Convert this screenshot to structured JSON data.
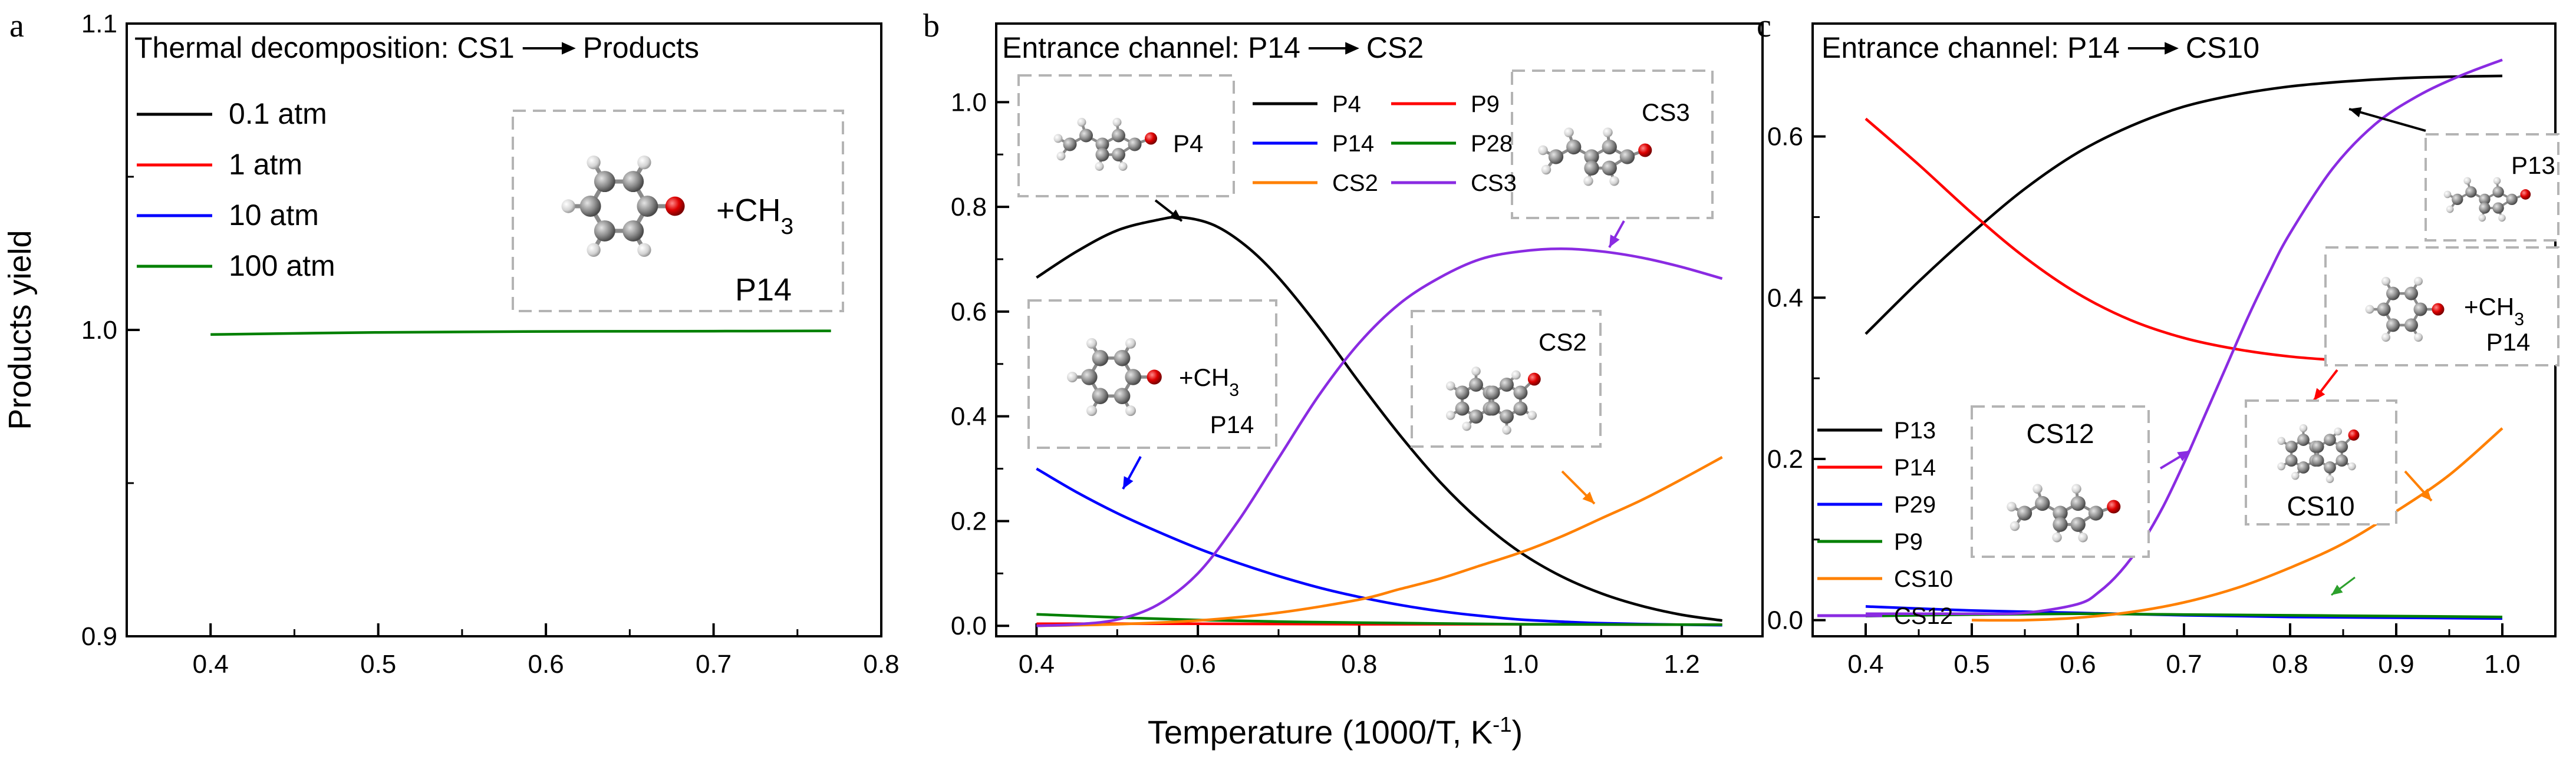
{
  "figure": {
    "xlabel_main": "Temperature (1000/T, K",
    "xlabel_sup": "-1",
    "xlabel_close": ")",
    "ylabel": "Products yield"
  },
  "chart_data": [
    {
      "panel": "a",
      "type": "line",
      "title": "Thermal decomposition: CS1",
      "title_after_arrow": "Products",
      "ylabel": "Products yield",
      "xlim": [
        0.35,
        0.8
      ],
      "ylim": [
        0.9,
        1.1
      ],
      "xticks": [
        "0.4",
        "0.5",
        "0.6",
        "0.7",
        "0.8"
      ],
      "yticks": [
        "0.9",
        "1.0",
        "1.1"
      ],
      "legend_position": "top-left",
      "series": [
        {
          "name": "0.1 atm",
          "color": "#000000",
          "visible": false,
          "x": [],
          "y": []
        },
        {
          "name": "1 atm",
          "color": "#ff0000",
          "visible": false,
          "x": [],
          "y": []
        },
        {
          "name": "10 atm",
          "color": "#0000ff",
          "visible": false,
          "x": [],
          "y": []
        },
        {
          "name": "100 atm",
          "color": "#008000",
          "visible": true,
          "x": [
            0.4,
            0.5,
            0.6,
            0.7,
            0.77
          ],
          "y": [
            0.9985,
            0.9992,
            0.9995,
            0.9996,
            0.9997
          ]
        }
      ],
      "insets": [
        {
          "molecule_icon": "p14-methyl-molecule-icon",
          "label": "P14",
          "extra_label": "+CH",
          "extra_sub": "3"
        }
      ]
    },
    {
      "panel": "b",
      "type": "line",
      "title": "Entrance channel: P14",
      "title_after_arrow": "CS2",
      "xlim": [
        0.35,
        1.3
      ],
      "ylim": [
        -0.02,
        1.15
      ],
      "xticks": [
        "0.4",
        "0.6",
        "0.8",
        "1.0",
        "1.2"
      ],
      "yticks": [
        "0.0",
        "0.2",
        "0.4",
        "0.6",
        "0.8",
        "1.0"
      ],
      "legend_position": "top-center",
      "series": [
        {
          "name": "P4",
          "color": "#000000",
          "x": [
            0.4,
            0.45,
            0.5,
            0.55,
            0.58,
            0.62,
            0.66,
            0.7,
            0.75,
            0.8,
            0.85,
            0.9,
            0.95,
            1.0,
            1.05,
            1.1,
            1.15,
            1.2,
            1.25
          ],
          "y": [
            0.665,
            0.715,
            0.755,
            0.775,
            0.78,
            0.765,
            0.725,
            0.665,
            0.57,
            0.465,
            0.365,
            0.275,
            0.2,
            0.14,
            0.095,
            0.062,
            0.038,
            0.021,
            0.01
          ]
        },
        {
          "name": "P9",
          "color": "#ff0000",
          "x": [
            0.4,
            0.6,
            0.8,
            1.0,
            1.25
          ],
          "y": [
            0.004,
            0.004,
            0.003,
            0.003,
            0.002
          ]
        },
        {
          "name": "P14",
          "color": "#0000ff",
          "x": [
            0.4,
            0.45,
            0.5,
            0.55,
            0.6,
            0.65,
            0.7,
            0.75,
            0.8,
            0.85,
            0.9,
            0.95,
            1.0,
            1.05,
            1.1,
            1.2,
            1.25
          ],
          "y": [
            0.3,
            0.255,
            0.215,
            0.18,
            0.148,
            0.12,
            0.095,
            0.073,
            0.055,
            0.04,
            0.028,
            0.019,
            0.012,
            0.008,
            0.005,
            0.002,
            0.001
          ]
        },
        {
          "name": "P28",
          "color": "#008000",
          "x": [
            0.4,
            0.5,
            0.6,
            0.7,
            0.8,
            1.0,
            1.25
          ],
          "y": [
            0.022,
            0.016,
            0.011,
            0.008,
            0.006,
            0.003,
            0.002
          ]
        },
        {
          "name": "CS2",
          "color": "#ff8000",
          "x": [
            0.4,
            0.5,
            0.6,
            0.7,
            0.8,
            0.85,
            0.9,
            0.95,
            1.0,
            1.05,
            1.1,
            1.15,
            1.2,
            1.25
          ],
          "y": [
            0.0,
            0.003,
            0.01,
            0.025,
            0.05,
            0.07,
            0.09,
            0.115,
            0.14,
            0.17,
            0.205,
            0.24,
            0.28,
            0.322
          ]
        },
        {
          "name": "CS3",
          "color": "#8a2be2",
          "x": [
            0.4,
            0.45,
            0.5,
            0.55,
            0.6,
            0.65,
            0.7,
            0.75,
            0.8,
            0.85,
            0.9,
            0.95,
            1.0,
            1.05,
            1.1,
            1.15,
            1.2,
            1.25
          ],
          "y": [
            0.0,
            0.003,
            0.012,
            0.04,
            0.1,
            0.2,
            0.32,
            0.44,
            0.54,
            0.615,
            0.665,
            0.7,
            0.715,
            0.72,
            0.715,
            0.703,
            0.685,
            0.663
          ]
        }
      ],
      "insets": [
        {
          "molecule_icon": "p4-molecule-icon",
          "label": "P4"
        },
        {
          "molecule_icon": "cs3-molecule-icon",
          "label": "CS3"
        },
        {
          "molecule_icon": "p14-methyl-molecule-icon",
          "label": "P14",
          "extra_label": "+CH",
          "extra_sub": "3"
        },
        {
          "molecule_icon": "cs2-molecule-icon",
          "label": "CS2"
        }
      ]
    },
    {
      "panel": "c",
      "type": "line",
      "title": "Entrance channel: P14",
      "title_after_arrow": "CS10",
      "xlim": [
        0.35,
        1.05
      ],
      "ylim": [
        -0.02,
        0.74
      ],
      "xticks": [
        "0.4",
        "0.5",
        "0.6",
        "0.7",
        "0.8",
        "0.9",
        "1.0"
      ],
      "yticks": [
        "0.0",
        "0.2",
        "0.4",
        "0.6"
      ],
      "legend_position": "bottom-left",
      "series": [
        {
          "name": "P13",
          "color": "#000000",
          "x": [
            0.4,
            0.45,
            0.5,
            0.55,
            0.6,
            0.65,
            0.7,
            0.75,
            0.8,
            0.85,
            0.9,
            0.95,
            1.0
          ],
          "y": [
            0.355,
            0.42,
            0.48,
            0.535,
            0.58,
            0.613,
            0.637,
            0.652,
            0.662,
            0.668,
            0.672,
            0.674,
            0.675
          ]
        },
        {
          "name": "P14",
          "color": "#ff0000",
          "x": [
            0.4,
            0.45,
            0.5,
            0.55,
            0.6,
            0.65,
            0.7,
            0.75,
            0.8,
            0.85,
            0.9,
            0.95,
            1.0
          ],
          "y": [
            0.622,
            0.565,
            0.505,
            0.45,
            0.405,
            0.372,
            0.35,
            0.336,
            0.327,
            0.322,
            0.319,
            0.318,
            0.318
          ]
        },
        {
          "name": "P29",
          "color": "#0000ff",
          "x": [
            0.4,
            0.5,
            0.6,
            0.7,
            0.8,
            0.9,
            1.0
          ],
          "y": [
            0.017,
            0.012,
            0.009,
            0.006,
            0.004,
            0.003,
            0.002
          ]
        },
        {
          "name": "P9",
          "color": "#008000",
          "x": [
            0.4,
            0.5,
            0.6,
            0.7,
            0.8,
            0.9,
            1.0
          ],
          "y": [
            0.005,
            0.007,
            0.008,
            0.007,
            0.006,
            0.005,
            0.004
          ]
        },
        {
          "name": "CS10",
          "color": "#ff8000",
          "x": [
            0.5,
            0.55,
            0.6,
            0.65,
            0.7,
            0.75,
            0.8,
            0.85,
            0.9,
            0.95,
            1.0
          ],
          "y": [
            0.0,
            0.0,
            0.003,
            0.01,
            0.022,
            0.04,
            0.065,
            0.095,
            0.135,
            0.18,
            0.238
          ]
        },
        {
          "name": "CS12",
          "color": "#8a2be2",
          "x": [
            0.4,
            0.45,
            0.5,
            0.55,
            0.6,
            0.62,
            0.64,
            0.66,
            0.68,
            0.7,
            0.72,
            0.74,
            0.76,
            0.78,
            0.8,
            0.84,
            0.88,
            0.92,
            0.96,
            1.0
          ],
          "y": [
            0.008,
            0.008,
            0.008,
            0.009,
            0.02,
            0.035,
            0.06,
            0.095,
            0.14,
            0.195,
            0.255,
            0.315,
            0.375,
            0.43,
            0.48,
            0.56,
            0.615,
            0.65,
            0.675,
            0.695
          ]
        }
      ],
      "insets": [
        {
          "molecule_icon": "p13-molecule-icon",
          "label": "P13"
        },
        {
          "molecule_icon": "p14-methyl-molecule-icon",
          "label": "P14",
          "extra_label": "+CH",
          "extra_sub": "3"
        },
        {
          "molecule_icon": "cs12-molecule-icon",
          "label": "CS12"
        },
        {
          "molecule_icon": "cs10-molecule-icon",
          "label": "CS10"
        }
      ]
    }
  ]
}
